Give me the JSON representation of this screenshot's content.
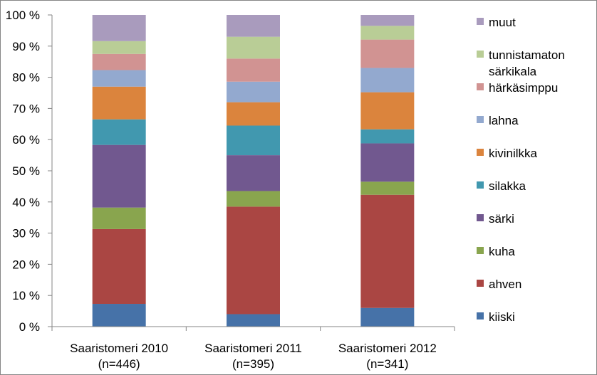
{
  "chart_data": {
    "type": "bar",
    "stacked": true,
    "percent": true,
    "categories": [
      [
        "Saaristomeri 2010",
        "(n=446)"
      ],
      [
        "Saaristomeri 2011",
        "(n=395)"
      ],
      [
        "Saaristomeri 2012",
        "(n=341)"
      ]
    ],
    "yticks": [
      "0 %",
      "10 %",
      "20 %",
      "30 %",
      "40 %",
      "50 %",
      "60 %",
      "70 %",
      "80 %",
      "90 %",
      "100 %"
    ],
    "ylim": [
      0,
      100
    ],
    "grid": false,
    "legend_position": "right",
    "series": [
      {
        "name": "kiiski",
        "color": "#4672a8",
        "values": [
          7.3,
          4.0,
          6.0
        ]
      },
      {
        "name": "ahven",
        "color": "#aa4643",
        "values": [
          24.0,
          34.5,
          36.3
        ]
      },
      {
        "name": "kuha",
        "color": "#89a54e",
        "values": [
          6.9,
          5.0,
          4.2
        ]
      },
      {
        "name": "särki",
        "color": "#71588f",
        "values": [
          20.1,
          11.5,
          12.3
        ]
      },
      {
        "name": "silakka",
        "color": "#4198af",
        "values": [
          8.2,
          9.5,
          4.5
        ]
      },
      {
        "name": "kivinilkka",
        "color": "#db843d",
        "values": [
          10.5,
          7.5,
          11.9
        ]
      },
      {
        "name": "lahna",
        "color": "#93a9cf",
        "values": [
          5.3,
          6.6,
          7.8
        ]
      },
      {
        "name": "härkäsimppu",
        "color": "#d19392",
        "values": [
          5.2,
          7.4,
          9.1
        ]
      },
      {
        "name": "tunnistamaton särkikala",
        "color": "#b9cd96",
        "values": [
          4.1,
          7.0,
          4.4
        ]
      },
      {
        "name": "muut",
        "color": "#a99bbd",
        "values": [
          8.4,
          7.0,
          3.5
        ]
      }
    ]
  },
  "legend_lines": [
    {
      "series": 9,
      "lines": [
        "muut"
      ]
    },
    {
      "series": 8,
      "lines": [
        "tunnistamaton",
        "särkikala"
      ]
    },
    {
      "series": 7,
      "lines": [
        "härkäsimppu"
      ]
    },
    {
      "series": 6,
      "lines": [
        "lahna"
      ]
    },
    {
      "series": 5,
      "lines": [
        "kivinilkka"
      ]
    },
    {
      "series": 4,
      "lines": [
        "silakka"
      ]
    },
    {
      "series": 3,
      "lines": [
        "särki"
      ]
    },
    {
      "series": 2,
      "lines": [
        "kuha"
      ]
    },
    {
      "series": 1,
      "lines": [
        "ahven"
      ]
    },
    {
      "series": 0,
      "lines": [
        "kiiski"
      ]
    }
  ]
}
